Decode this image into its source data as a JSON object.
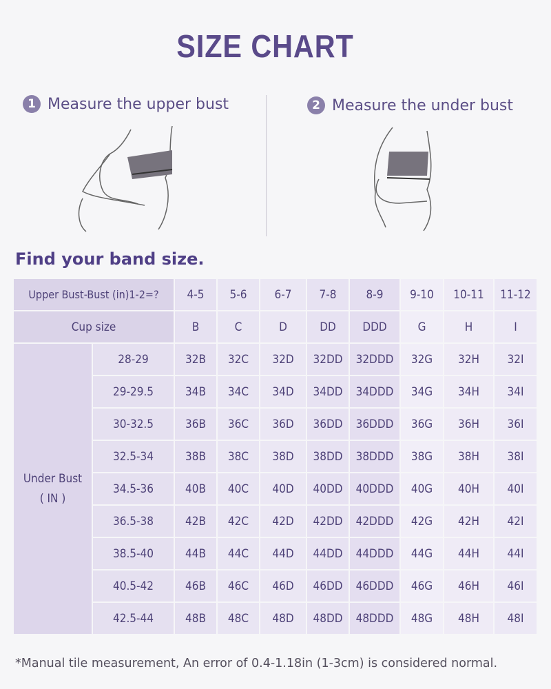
{
  "title": "SIZE CHART",
  "steps": [
    {
      "number": "1",
      "label": "Measure the upper bust"
    },
    {
      "number": "2",
      "label": "Measure the under bust"
    }
  ],
  "band_heading": "Find your band size.",
  "table": {
    "row1_label": "Upper Bust-Bust (in)1-2=?",
    "differences": [
      "4-5",
      "5-6",
      "6-7",
      "7-8",
      "8-9",
      "9-10",
      "10-11",
      "11-12"
    ],
    "row2_label": "Cup size",
    "cups": [
      "B",
      "C",
      "D",
      "DD",
      "DDD",
      "G",
      "H",
      "I"
    ],
    "under_bust_label": "Under Bust",
    "under_bust_unit": "( IN )",
    "rows": [
      {
        "range": "28-29",
        "sizes": [
          "32B",
          "32C",
          "32D",
          "32DD",
          "32DDD",
          "32G",
          "32H",
          "32I"
        ]
      },
      {
        "range": "29-29.5",
        "sizes": [
          "34B",
          "34C",
          "34D",
          "34DD",
          "34DDD",
          "34G",
          "34H",
          "34I"
        ]
      },
      {
        "range": "30-32.5",
        "sizes": [
          "36B",
          "36C",
          "36D",
          "36DD",
          "36DDD",
          "36G",
          "36H",
          "36I"
        ]
      },
      {
        "range": "32.5-34",
        "sizes": [
          "38B",
          "38C",
          "38D",
          "38DD",
          "38DDD",
          "38G",
          "38H",
          "38I"
        ]
      },
      {
        "range": "34.5-36",
        "sizes": [
          "40B",
          "40C",
          "40D",
          "40DD",
          "40DDD",
          "40G",
          "40H",
          "40I"
        ]
      },
      {
        "range": "36.5-38",
        "sizes": [
          "42B",
          "42C",
          "42D",
          "42DD",
          "42DDD",
          "42G",
          "42H",
          "42I"
        ]
      },
      {
        "range": "38.5-40",
        "sizes": [
          "44B",
          "44C",
          "44D",
          "44DD",
          "44DDD",
          "44G",
          "44H",
          "44I"
        ]
      },
      {
        "range": "40.5-42",
        "sizes": [
          "46B",
          "46C",
          "46D",
          "46DD",
          "46DDD",
          "46G",
          "46H",
          "46I"
        ]
      },
      {
        "range": "42.5-44",
        "sizes": [
          "48B",
          "48C",
          "48D",
          "48DD",
          "48DDD",
          "48G",
          "48H",
          "48I"
        ]
      }
    ]
  },
  "footnote": "*Manual tile measurement, An error of 0.4-1.18in (1-3cm) is considered normal.",
  "colors": {
    "accent": "#5a4a8a",
    "header_cell": "#dad3e8",
    "text": "#4e4278"
  }
}
